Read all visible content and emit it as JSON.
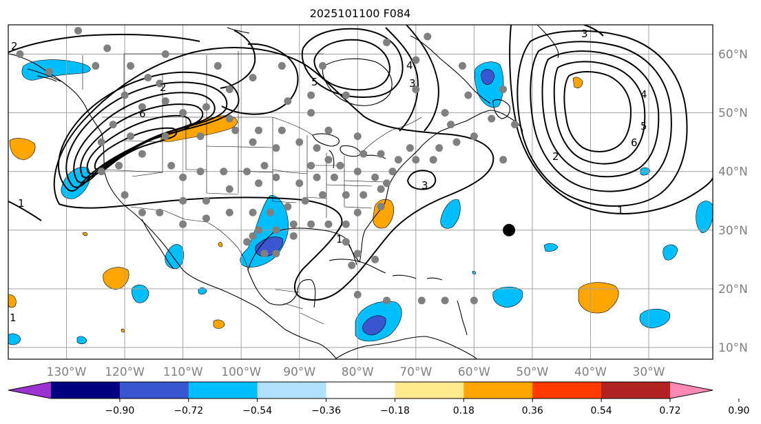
{
  "title": "2025101100 F084",
  "map": {
    "lon_min": -140,
    "lon_max": -19,
    "lat_min": 8,
    "lat_max": 65,
    "gridlines": true
  },
  "lon_labels": [
    "130°W",
    "120°W",
    "110°W",
    "100°W",
    "90°W",
    "80°W",
    "70°W",
    "60°W",
    "50°W",
    "40°W",
    "30°W"
  ],
  "lon_values": [
    -130,
    -120,
    -110,
    -100,
    -90,
    -80,
    -70,
    -60,
    -50,
    -40,
    -30
  ],
  "lat_labels": [
    "60°N",
    "50°N",
    "40°N",
    "30°N",
    "20°N",
    "10°N"
  ],
  "lat_values": [
    60,
    50,
    40,
    30,
    20,
    10
  ],
  "colorbar": {
    "ticks": [
      "−0.90",
      "−0.72",
      "−0.54",
      "−0.36",
      "−0.18",
      "0.18",
      "0.36",
      "0.54",
      "0.72",
      "0.90"
    ],
    "colors": [
      "#9a33d0",
      "#000080",
      "#3a56d0",
      "#00bfff",
      "#b0e0ff",
      "#ffffff",
      "#ffe98a",
      "#ffa500",
      "#ff3a00",
      "#b22222",
      "#ff88b4"
    ]
  },
  "contour_labels": [
    "2",
    "6",
    "5",
    "2",
    "4",
    "3",
    "1",
    "3",
    "4",
    "5",
    "6",
    "2",
    "1",
    "3",
    "1",
    "1"
  ],
  "marker": {
    "lon": -54,
    "lat": 30,
    "color": "#000000"
  },
  "stations": [
    [
      -128,
      64
    ],
    [
      -123,
      61
    ],
    [
      -119,
      58
    ],
    [
      -120,
      53
    ],
    [
      -117,
      51
    ],
    [
      -113,
      52
    ],
    [
      -110,
      50
    ],
    [
      -106,
      51
    ],
    [
      -102,
      49
    ],
    [
      -107,
      46
    ],
    [
      -113,
      46
    ],
    [
      -117,
      43
    ],
    [
      -121,
      41
    ],
    [
      -124,
      40
    ],
    [
      -124,
      45
    ],
    [
      -119,
      46
    ],
    [
      -122,
      48
    ],
    [
      -112,
      41
    ],
    [
      -110,
      39
    ],
    [
      -107,
      40
    ],
    [
      -103,
      40
    ],
    [
      -99,
      40
    ],
    [
      -96,
      41
    ],
    [
      -94,
      44
    ],
    [
      -98,
      45
    ],
    [
      -101,
      47
    ],
    [
      -97,
      47
    ],
    [
      -93,
      47
    ],
    [
      -90,
      45
    ],
    [
      -87,
      44
    ],
    [
      -85,
      42
    ],
    [
      -88,
      41
    ],
    [
      -83,
      41
    ],
    [
      -79,
      43
    ],
    [
      -76,
      43
    ],
    [
      -73,
      42
    ],
    [
      -71,
      44
    ],
    [
      -70,
      42
    ],
    [
      -74,
      40
    ],
    [
      -75,
      38
    ],
    [
      -77,
      39
    ],
    [
      -80,
      40
    ],
    [
      -84,
      39
    ],
    [
      -87,
      39
    ],
    [
      -90,
      38
    ],
    [
      -94,
      39
    ],
    [
      -97,
      38
    ],
    [
      -102,
      37
    ],
    [
      -106,
      35
    ],
    [
      -110,
      35
    ],
    [
      -114,
      33
    ],
    [
      -117,
      33
    ],
    [
      -120,
      36
    ],
    [
      -110,
      31
    ],
    [
      -106,
      32
    ],
    [
      -102,
      33
    ],
    [
      -98,
      33
    ],
    [
      -95,
      33
    ],
    [
      -92,
      34
    ],
    [
      -89,
      35
    ],
    [
      -86,
      36
    ],
    [
      -82,
      36
    ],
    [
      -79,
      36
    ],
    [
      -76,
      37
    ],
    [
      -80,
      33
    ],
    [
      -82,
      31
    ],
    [
      -85,
      31
    ],
    [
      -88,
      31
    ],
    [
      -91,
      31
    ],
    [
      -94,
      30
    ],
    [
      -97,
      30
    ],
    [
      -99,
      28
    ],
    [
      -96,
      26
    ],
    [
      -91,
      29
    ],
    [
      -82,
      28
    ],
    [
      -80,
      26
    ],
    [
      -81,
      24
    ],
    [
      -77,
      25
    ],
    [
      -80,
      19
    ],
    [
      -75,
      18
    ],
    [
      -69,
      18
    ],
    [
      -65,
      18
    ],
    [
      -60,
      18
    ],
    [
      -66,
      44
    ],
    [
      -63,
      45
    ],
    [
      -60,
      46
    ],
    [
      -64,
      48
    ],
    [
      -57,
      49
    ],
    [
      -53,
      48
    ],
    [
      -61,
      53
    ],
    [
      -55,
      54
    ],
    [
      -62,
      58
    ],
    [
      -70,
      59
    ],
    [
      -68,
      63
    ],
    [
      -75,
      62
    ],
    [
      -86,
      58
    ],
    [
      -93,
      58
    ],
    [
      -82,
      53
    ],
    [
      -88,
      50
    ],
    [
      -98,
      56
    ],
    [
      -104,
      58
    ],
    [
      -113,
      60
    ],
    [
      -116,
      56
    ],
    [
      -125,
      58
    ],
    [
      -133,
      57
    ],
    [
      -138,
      60
    ],
    [
      -76,
      34
    ],
    [
      -88,
      53
    ],
    [
      -70,
      54
    ],
    [
      -65,
      50
    ],
    [
      -55,
      42
    ],
    [
      -67,
      42
    ],
    [
      -80,
      46
    ],
    [
      -98,
      29
    ],
    [
      -94,
      26
    ],
    [
      -114,
      55
    ],
    [
      -102,
      54
    ],
    [
      -92,
      52
    ],
    [
      -85,
      47
    ]
  ]
}
